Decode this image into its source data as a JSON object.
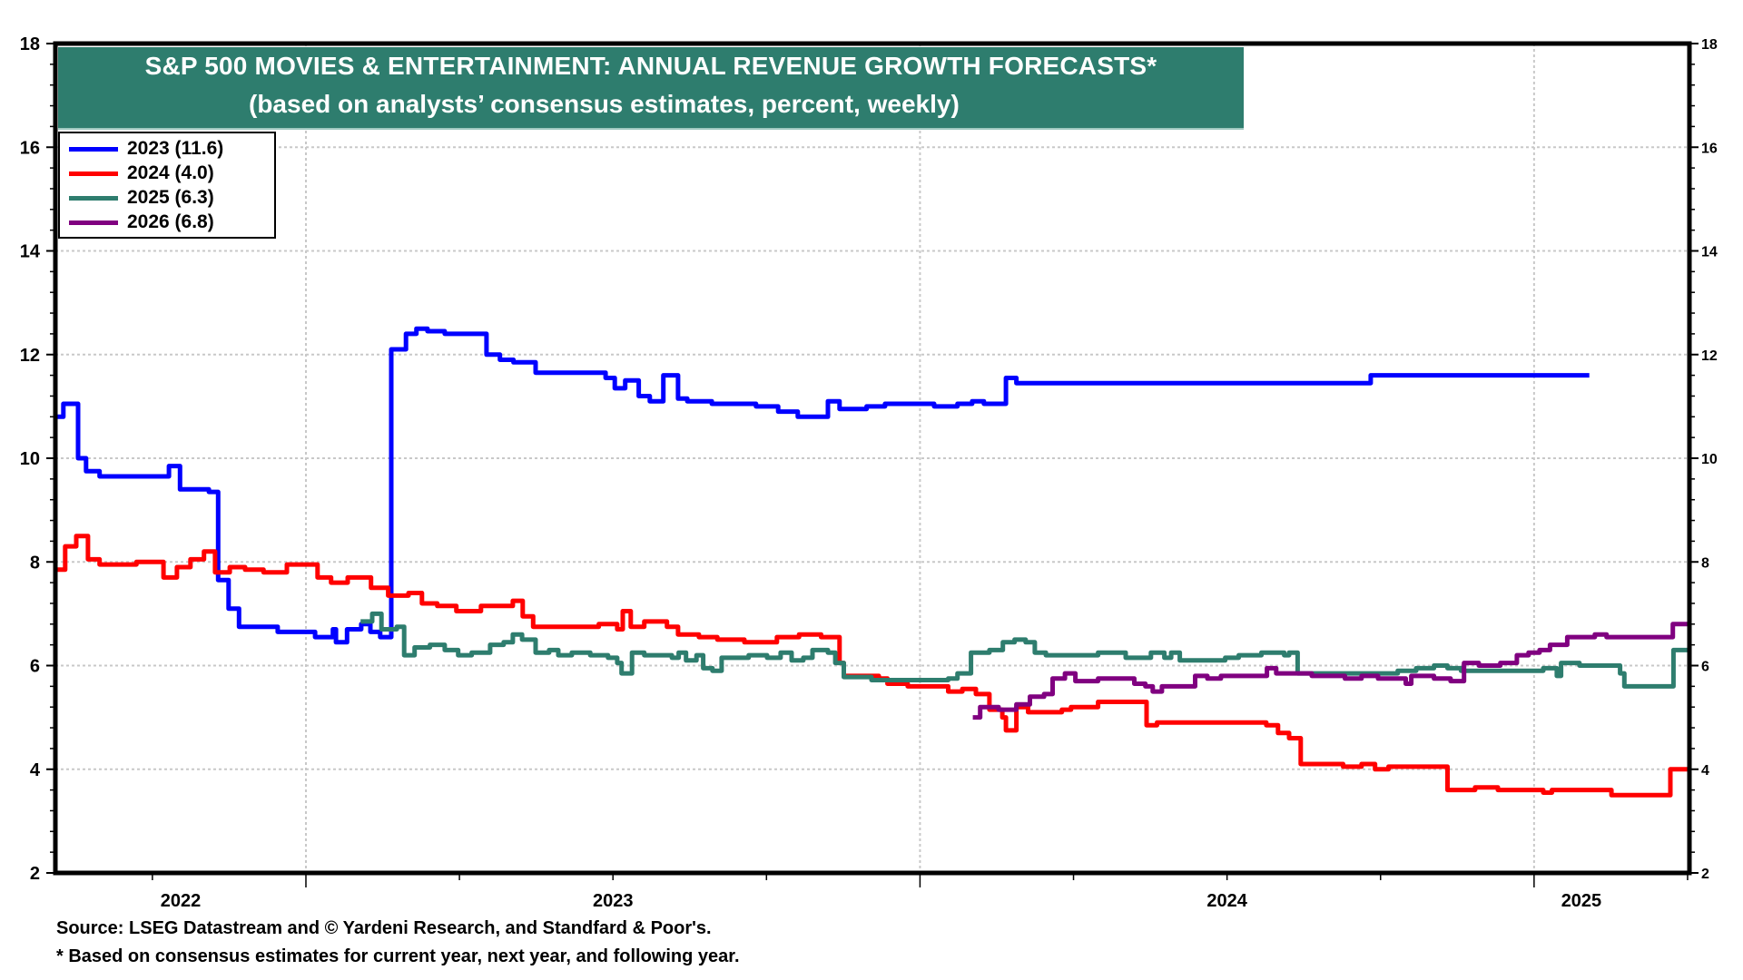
{
  "chart_data": {
    "type": "line",
    "title": "S&P 500 MOVIES & ENTERTAINMENT: ANNUAL REVENUE GROWTH FORECASTS*",
    "subtitle": "(based on analysts’ consensus estimates, percent, weekly)",
    "xlabel": "",
    "ylabel": "",
    "xlim": [
      2022.592,
      2025.253
    ],
    "ylim": [
      2,
      18
    ],
    "y_ticks": [
      2,
      4,
      6,
      8,
      10,
      12,
      14,
      16,
      18
    ],
    "y_ticks_right": [
      2,
      4,
      6,
      8,
      10,
      12,
      14,
      16,
      18
    ],
    "x_year_labels": [
      {
        "label": "2022",
        "x": 2022.796
      },
      {
        "label": "2023",
        "x": 2023.5
      },
      {
        "label": "2024",
        "x": 2024.5
      },
      {
        "label": "2025",
        "x": 2025.077
      }
    ],
    "x_year_boundaries": [
      2023,
      2024,
      2025
    ],
    "grid": true,
    "legend_position": "top-left",
    "step": true,
    "series": [
      {
        "name": "2023 (11.6)",
        "color": "#0000ff",
        "points": [
          [
            2022.592,
            10.8
          ],
          [
            2022.605,
            11.05
          ],
          [
            2022.629,
            10.0
          ],
          [
            2022.642,
            9.75
          ],
          [
            2022.664,
            9.65
          ],
          [
            2022.777,
            9.85
          ],
          [
            2022.795,
            9.4
          ],
          [
            2022.842,
            9.35
          ],
          [
            2022.857,
            7.65
          ],
          [
            2022.874,
            7.1
          ],
          [
            2022.891,
            6.75
          ],
          [
            2022.954,
            6.65
          ],
          [
            2023.015,
            6.55
          ],
          [
            2023.044,
            6.7
          ],
          [
            2023.049,
            6.45
          ],
          [
            2023.067,
            6.7
          ],
          [
            2023.09,
            6.8
          ],
          [
            2023.105,
            6.65
          ],
          [
            2023.121,
            6.55
          ],
          [
            2023.139,
            12.1
          ],
          [
            2023.163,
            12.4
          ],
          [
            2023.18,
            12.5
          ],
          [
            2023.198,
            12.45
          ],
          [
            2023.226,
            12.4
          ],
          [
            2023.294,
            12.0
          ],
          [
            2023.316,
            11.9
          ],
          [
            2023.338,
            11.85
          ],
          [
            2023.374,
            11.65
          ],
          [
            2023.488,
            11.55
          ],
          [
            2023.503,
            11.35
          ],
          [
            2023.52,
            11.5
          ],
          [
            2023.542,
            11.2
          ],
          [
            2023.56,
            11.1
          ],
          [
            2023.582,
            11.6
          ],
          [
            2023.606,
            11.15
          ],
          [
            2023.621,
            11.1
          ],
          [
            2023.661,
            11.05
          ],
          [
            2023.733,
            11.0
          ],
          [
            2023.769,
            10.9
          ],
          [
            2023.801,
            10.8
          ],
          [
            2023.85,
            11.1
          ],
          [
            2023.869,
            10.95
          ],
          [
            2023.913,
            11.0
          ],
          [
            2023.943,
            11.05
          ],
          [
            2024.023,
            11.0
          ],
          [
            2024.061,
            11.05
          ],
          [
            2024.085,
            11.1
          ],
          [
            2024.104,
            11.05
          ],
          [
            2024.14,
            11.55
          ],
          [
            2024.157,
            11.45
          ],
          [
            2024.734,
            11.6
          ],
          [
            2025.09,
            11.6
          ]
        ]
      },
      {
        "name": "2024 (4.0)",
        "color": "#ff0000",
        "points": [
          [
            2022.592,
            7.85
          ],
          [
            2022.608,
            8.3
          ],
          [
            2022.626,
            8.5
          ],
          [
            2022.645,
            8.05
          ],
          [
            2022.664,
            7.95
          ],
          [
            2022.724,
            8.0
          ],
          [
            2022.768,
            7.7
          ],
          [
            2022.79,
            7.9
          ],
          [
            2022.812,
            8.05
          ],
          [
            2022.834,
            8.2
          ],
          [
            2022.852,
            7.8
          ],
          [
            2022.876,
            7.9
          ],
          [
            2022.901,
            7.85
          ],
          [
            2022.931,
            7.8
          ],
          [
            2022.969,
            7.95
          ],
          [
            2023.019,
            7.7
          ],
          [
            2023.041,
            7.6
          ],
          [
            2023.068,
            7.7
          ],
          [
            2023.106,
            7.5
          ],
          [
            2023.134,
            7.35
          ],
          [
            2023.167,
            7.4
          ],
          [
            2023.189,
            7.2
          ],
          [
            2023.214,
            7.15
          ],
          [
            2023.245,
            7.05
          ],
          [
            2023.285,
            7.15
          ],
          [
            2023.337,
            7.25
          ],
          [
            2023.353,
            6.95
          ],
          [
            2023.37,
            6.75
          ],
          [
            2023.477,
            6.8
          ],
          [
            2023.507,
            6.7
          ],
          [
            2023.516,
            7.05
          ],
          [
            2023.529,
            6.75
          ],
          [
            2023.551,
            6.85
          ],
          [
            2023.588,
            6.75
          ],
          [
            2023.606,
            6.6
          ],
          [
            2023.64,
            6.55
          ],
          [
            2023.67,
            6.5
          ],
          [
            2023.714,
            6.45
          ],
          [
            2023.767,
            6.55
          ],
          [
            2023.803,
            6.6
          ],
          [
            2023.839,
            6.55
          ],
          [
            2023.869,
            6.05
          ],
          [
            2023.876,
            5.8
          ],
          [
            2023.933,
            5.75
          ],
          [
            2023.947,
            5.65
          ],
          [
            2023.98,
            5.6
          ],
          [
            2024.046,
            5.5
          ],
          [
            2024.069,
            5.55
          ],
          [
            2024.091,
            5.45
          ],
          [
            2024.113,
            5.15
          ],
          [
            2024.134,
            5.0
          ],
          [
            2024.14,
            4.75
          ],
          [
            2024.157,
            5.2
          ],
          [
            2024.176,
            5.1
          ],
          [
            2024.231,
            5.15
          ],
          [
            2024.246,
            5.2
          ],
          [
            2024.29,
            5.3
          ],
          [
            2024.369,
            4.85
          ],
          [
            2024.386,
            4.9
          ],
          [
            2024.564,
            4.85
          ],
          [
            2024.583,
            4.7
          ],
          [
            2024.601,
            4.6
          ],
          [
            2024.62,
            4.1
          ],
          [
            2024.689,
            4.05
          ],
          [
            2024.719,
            4.1
          ],
          [
            2024.741,
            4.0
          ],
          [
            2024.763,
            4.05
          ],
          [
            2024.859,
            3.6
          ],
          [
            2024.904,
            3.65
          ],
          [
            2024.941,
            3.6
          ],
          [
            2025.015,
            3.55
          ],
          [
            2025.029,
            3.6
          ],
          [
            2025.126,
            3.5
          ],
          [
            2025.222,
            4.0
          ],
          [
            2025.253,
            4.0
          ]
        ]
      },
      {
        "name": "2025 (6.3)",
        "color": "#2e7d6e",
        "points": [
          [
            2023.089,
            6.85
          ],
          [
            2023.108,
            7.0
          ],
          [
            2023.123,
            6.7
          ],
          [
            2023.148,
            6.75
          ],
          [
            2023.16,
            6.2
          ],
          [
            2023.177,
            6.35
          ],
          [
            2023.202,
            6.4
          ],
          [
            2023.226,
            6.3
          ],
          [
            2023.248,
            6.2
          ],
          [
            2023.27,
            6.25
          ],
          [
            2023.3,
            6.4
          ],
          [
            2023.322,
            6.45
          ],
          [
            2023.337,
            6.6
          ],
          [
            2023.352,
            6.5
          ],
          [
            2023.374,
            6.25
          ],
          [
            2023.396,
            6.3
          ],
          [
            2023.411,
            6.2
          ],
          [
            2023.433,
            6.25
          ],
          [
            2023.463,
            6.2
          ],
          [
            2023.492,
            6.15
          ],
          [
            2023.507,
            6.05
          ],
          [
            2023.514,
            5.85
          ],
          [
            2023.531,
            6.25
          ],
          [
            2023.551,
            6.2
          ],
          [
            2023.596,
            6.15
          ],
          [
            2023.607,
            6.25
          ],
          [
            2023.619,
            6.1
          ],
          [
            2023.636,
            6.2
          ],
          [
            2023.647,
            5.95
          ],
          [
            2023.662,
            5.9
          ],
          [
            2023.677,
            6.15
          ],
          [
            2023.721,
            6.2
          ],
          [
            2023.751,
            6.15
          ],
          [
            2023.773,
            6.25
          ],
          [
            2023.791,
            6.1
          ],
          [
            2023.81,
            6.15
          ],
          [
            2023.825,
            6.3
          ],
          [
            2023.85,
            6.25
          ],
          [
            2023.862,
            6.05
          ],
          [
            2023.876,
            5.78
          ],
          [
            2023.921,
            5.72
          ],
          [
            2024.046,
            5.75
          ],
          [
            2024.061,
            5.85
          ],
          [
            2024.083,
            6.25
          ],
          [
            2024.113,
            6.3
          ],
          [
            2024.135,
            6.45
          ],
          [
            2024.154,
            6.5
          ],
          [
            2024.172,
            6.45
          ],
          [
            2024.187,
            6.25
          ],
          [
            2024.205,
            6.2
          ],
          [
            2024.29,
            6.25
          ],
          [
            2024.335,
            6.15
          ],
          [
            2024.376,
            6.25
          ],
          [
            2024.398,
            6.15
          ],
          [
            2024.409,
            6.25
          ],
          [
            2024.423,
            6.1
          ],
          [
            2024.497,
            6.15
          ],
          [
            2024.519,
            6.2
          ],
          [
            2024.556,
            6.25
          ],
          [
            2024.593,
            6.2
          ],
          [
            2024.601,
            6.25
          ],
          [
            2024.615,
            5.85
          ],
          [
            2024.778,
            5.9
          ],
          [
            2024.808,
            5.95
          ],
          [
            2024.837,
            6.0
          ],
          [
            2024.859,
            5.95
          ],
          [
            2024.881,
            5.9
          ],
          [
            2025.015,
            5.95
          ],
          [
            2025.037,
            5.8
          ],
          [
            2025.044,
            6.05
          ],
          [
            2025.074,
            6.0
          ],
          [
            2025.14,
            5.85
          ],
          [
            2025.147,
            5.6
          ],
          [
            2025.227,
            6.3
          ],
          [
            2025.253,
            6.3
          ]
        ]
      },
      {
        "name": "2026 (6.8)",
        "color": "#800080",
        "points": [
          [
            2024.086,
            5.0
          ],
          [
            2024.098,
            5.2
          ],
          [
            2024.128,
            5.15
          ],
          [
            2024.157,
            5.25
          ],
          [
            2024.179,
            5.4
          ],
          [
            2024.202,
            5.45
          ],
          [
            2024.216,
            5.75
          ],
          [
            2024.236,
            5.85
          ],
          [
            2024.253,
            5.7
          ],
          [
            2024.29,
            5.75
          ],
          [
            2024.349,
            5.65
          ],
          [
            2024.367,
            5.6
          ],
          [
            2024.379,
            5.5
          ],
          [
            2024.394,
            5.6
          ],
          [
            2024.448,
            5.8
          ],
          [
            2024.468,
            5.75
          ],
          [
            2024.49,
            5.8
          ],
          [
            2024.565,
            5.95
          ],
          [
            2024.58,
            5.85
          ],
          [
            2024.638,
            5.8
          ],
          [
            2024.692,
            5.75
          ],
          [
            2024.719,
            5.8
          ],
          [
            2024.746,
            5.75
          ],
          [
            2024.791,
            5.65
          ],
          [
            2024.8,
            5.8
          ],
          [
            2024.837,
            5.75
          ],
          [
            2024.864,
            5.7
          ],
          [
            2024.886,
            6.05
          ],
          [
            2024.91,
            6.0
          ],
          [
            2024.945,
            6.05
          ],
          [
            2024.972,
            6.2
          ],
          [
            2024.991,
            6.25
          ],
          [
            2025.009,
            6.3
          ],
          [
            2025.026,
            6.4
          ],
          [
            2025.054,
            6.55
          ],
          [
            2025.099,
            6.6
          ],
          [
            2025.118,
            6.55
          ],
          [
            2025.226,
            6.8
          ],
          [
            2025.253,
            6.8
          ]
        ]
      }
    ]
  },
  "footnotes": {
    "source": "Source: LSEG Datastream and © Yardeni Research, and Standfard & Poor's.",
    "note": "* Based on consensus estimates for current year, next year, and following year."
  }
}
